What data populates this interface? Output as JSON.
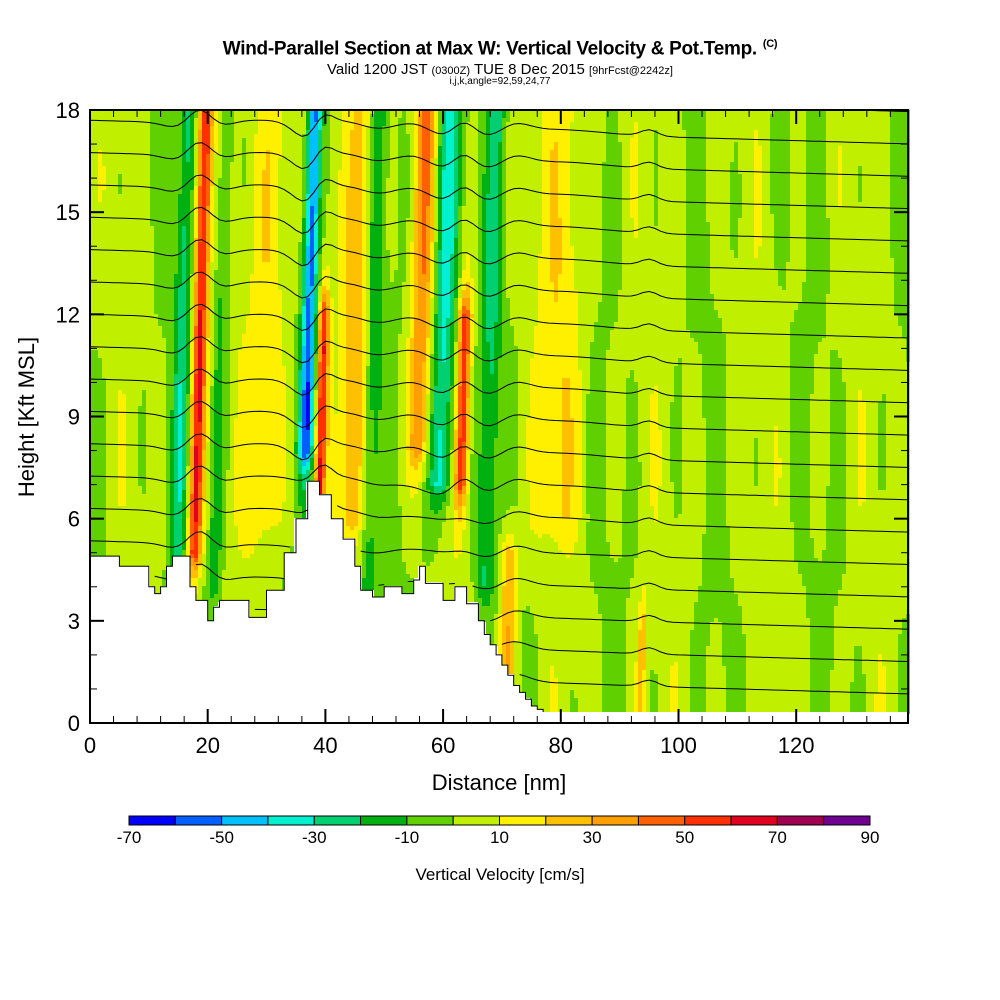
{
  "header": {
    "title": "Wind-Parallel Section at Max W: Vertical Velocity & Pot.Temp.",
    "copyright_mark": "(C)",
    "valid_prefix": "Valid 1200 JST",
    "valid_utc": "(0300Z)",
    "valid_date": "TUE 8 Dec 2015",
    "forecast_tag": "[9hrFcst@2242z]",
    "grid_info": "i,j,k,angle=92,59,24,77"
  },
  "chart_data": {
    "type": "heatmap",
    "title": "Wind-Parallel Section at Max W: Vertical Velocity & Pot.Temp.",
    "xlabel": "Distance [nm]",
    "ylabel": "Height [Kft MSL]",
    "xlim": [
      0,
      139
    ],
    "ylim": [
      0,
      18
    ],
    "xticks": [
      0,
      20,
      40,
      60,
      80,
      100,
      120
    ],
    "yticks": [
      0,
      3,
      6,
      9,
      12,
      15,
      18
    ],
    "colorbar": {
      "title": "Vertical Velocity [cm/s]",
      "levels": [
        -70,
        -60,
        -50,
        -40,
        -30,
        -20,
        -10,
        0,
        10,
        20,
        30,
        40,
        50,
        60,
        70,
        80,
        90
      ],
      "tick_labels": [
        "-70",
        "-50",
        "-30",
        "-10",
        "10",
        "30",
        "50",
        "70",
        "90"
      ],
      "colors": [
        "#0000ff",
        "#0060ff",
        "#00c0ff",
        "#00f0d0",
        "#00d070",
        "#00b010",
        "#60d000",
        "#c0f000",
        "#fff000",
        "#ffc000",
        "#ffa000",
        "#ff6000",
        "#ff3000",
        "#e00020",
        "#a00050",
        "#700090"
      ]
    },
    "vertical_velocity_features": [
      {
        "x": 18.5,
        "zmin": 5,
        "zmax": 18,
        "w": 60,
        "width": 1.2,
        "kind": "updraft"
      },
      {
        "x": 15.5,
        "zmin": 4,
        "zmax": 18,
        "w": -25,
        "width": 1.4,
        "kind": "downdraft"
      },
      {
        "x": 22,
        "zmin": 4,
        "zmax": 18,
        "w": -18,
        "width": 1.2,
        "kind": "downdraft"
      },
      {
        "x": 30,
        "zmin": 6,
        "zmax": 18,
        "w": 18,
        "width": 3.5,
        "kind": "updraft"
      },
      {
        "x": 37,
        "zmin": 8,
        "zmax": 18,
        "w": -58,
        "width": 1.3,
        "kind": "downdraft"
      },
      {
        "x": 39.5,
        "zmin": 6,
        "zmax": 12,
        "w": 55,
        "width": 0.9,
        "kind": "updraft"
      },
      {
        "x": 45,
        "zmin": 6,
        "zmax": 18,
        "w": 25,
        "width": 2.2,
        "kind": "updraft"
      },
      {
        "x": 48,
        "zmin": 4,
        "zmax": 18,
        "w": -18,
        "width": 1.5,
        "kind": "downdraft"
      },
      {
        "x": 56,
        "zmin": 8,
        "zmax": 18,
        "w": 35,
        "width": 1.8,
        "kind": "updraft"
      },
      {
        "x": 60,
        "zmin": 7,
        "zmax": 18,
        "w": -38,
        "width": 2.0,
        "kind": "downdraft"
      },
      {
        "x": 63.5,
        "zmin": 7,
        "zmax": 12,
        "w": 55,
        "width": 1.1,
        "kind": "updraft"
      },
      {
        "x": 68,
        "zmin": 4,
        "zmax": 18,
        "w": -22,
        "width": 1.6,
        "kind": "downdraft"
      },
      {
        "x": 72,
        "zmin": 1,
        "zmax": 5,
        "w": 30,
        "width": 1.4,
        "kind": "updraft"
      },
      {
        "x": 80,
        "zmin": 6,
        "zmax": 18,
        "w": 15,
        "width": 4,
        "kind": "updraft"
      },
      {
        "x": 95,
        "zmin": 0,
        "zmax": 3,
        "w": 22,
        "width": 0.8,
        "kind": "updraft"
      }
    ],
    "terrain_kft": {
      "x": [
        0,
        5,
        9,
        10,
        11,
        12,
        13,
        14,
        16,
        17,
        18,
        20,
        21,
        22,
        25,
        27,
        30,
        33,
        35,
        37,
        38,
        39,
        41,
        43,
        45,
        46,
        48,
        50,
        53,
        55,
        56,
        57,
        60,
        62,
        64,
        66,
        67,
        68,
        69,
        70,
        71,
        72,
        73,
        74,
        75,
        76,
        77,
        80,
        139
      ],
      "z": [
        4.9,
        4.6,
        4.6,
        4.0,
        3.8,
        4.0,
        4.6,
        4.9,
        4.9,
        4.0,
        3.6,
        3.0,
        3.4,
        3.6,
        3.6,
        3.1,
        3.9,
        5.0,
        6.0,
        7.1,
        7.1,
        6.7,
        6.0,
        5.4,
        4.6,
        3.9,
        3.7,
        4.0,
        3.8,
        4.2,
        4.6,
        4.1,
        3.6,
        4.0,
        3.5,
        3.0,
        2.6,
        2.3,
        2.0,
        1.7,
        1.4,
        1.1,
        0.9,
        0.7,
        0.5,
        0.4,
        0.3,
        0.3,
        0.3
      ]
    },
    "potential_temperature_contours": {
      "interval": 2,
      "levels": [
        4,
        6,
        8,
        10,
        12,
        14,
        16,
        18,
        20,
        22,
        24,
        26,
        28,
        30,
        32,
        34,
        36,
        38,
        40
      ],
      "label_note": "contour labels rendered at 1-2 px font; values approximate"
    }
  }
}
